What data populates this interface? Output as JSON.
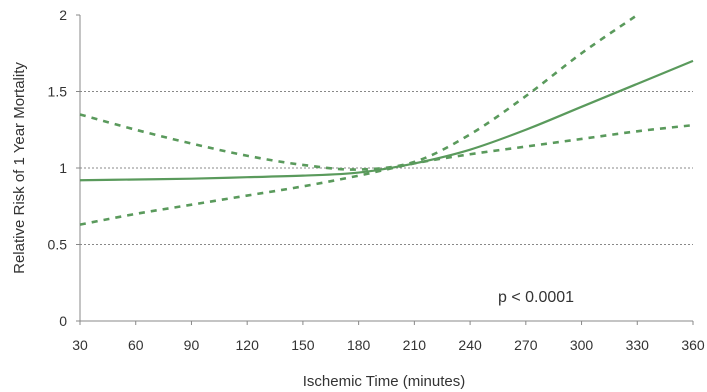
{
  "chart_data": {
    "type": "line",
    "xlabel": "Ischemic Time (minutes)",
    "ylabel": "Relative Risk of 1 Year Mortality",
    "xlim": [
      30,
      360
    ],
    "ylim": [
      0,
      2
    ],
    "x_ticks": [
      "30",
      "60",
      "90",
      "120",
      "150",
      "180",
      "210",
      "240",
      "270",
      "300",
      "330",
      "360"
    ],
    "y_ticks": [
      "0",
      "0.5",
      "1",
      "1.5",
      "2"
    ],
    "gridlines_y": [
      0.5,
      1,
      1.5
    ],
    "grid": "horizontal dotted",
    "annotation": "p < 0.0001",
    "colors": {
      "line": "#5a9a5c",
      "grid": "#888888",
      "axis": "#888888"
    },
    "series": [
      {
        "style": "solid",
        "x": [
          30,
          60,
          90,
          120,
          150,
          180,
          210,
          240,
          270,
          300,
          330,
          360
        ],
        "y": [
          0.92,
          0.925,
          0.93,
          0.94,
          0.95,
          0.97,
          1.03,
          1.12,
          1.25,
          1.4,
          1.55,
          1.7
        ]
      },
      {
        "style": "dashed",
        "x": [
          30,
          60,
          90,
          120,
          150,
          180,
          210,
          240,
          270,
          300,
          330
        ],
        "y": [
          1.35,
          1.25,
          1.16,
          1.08,
          1.02,
          0.99,
          1.04,
          1.22,
          1.47,
          1.75,
          2.0
        ]
      },
      {
        "style": "dashed",
        "x": [
          30,
          60,
          90,
          120,
          150,
          180,
          210,
          240,
          270,
          300,
          330,
          360
        ],
        "y": [
          0.63,
          0.7,
          0.76,
          0.82,
          0.88,
          0.95,
          1.03,
          1.09,
          1.14,
          1.19,
          1.24,
          1.28
        ]
      }
    ]
  }
}
